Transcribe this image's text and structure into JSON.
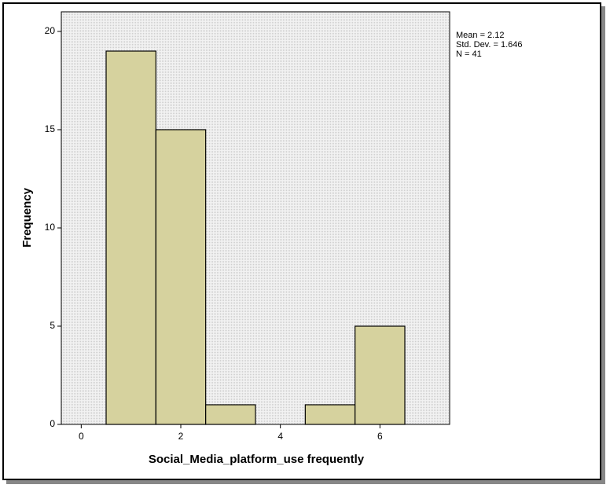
{
  "chart_data": {
    "type": "histogram",
    "x_label": "Social_Media_platform_use frequently",
    "y_label": "Frequency",
    "bins": [
      0.5,
      1.5,
      2.5,
      3.5,
      4.5,
      5.5,
      6.5
    ],
    "values": [
      19,
      15,
      1,
      0,
      1,
      5
    ],
    "color": "#d6d29e",
    "xlim": [
      -0.4,
      7.4
    ],
    "xticks": [
      0,
      2,
      4,
      6
    ],
    "ylim": [
      0,
      21
    ],
    "yticks": [
      0,
      5,
      10,
      15,
      20
    ],
    "annotations": [
      "Mean = 2.12",
      "Std. Dev. = 1.646",
      "N = 41"
    ]
  }
}
